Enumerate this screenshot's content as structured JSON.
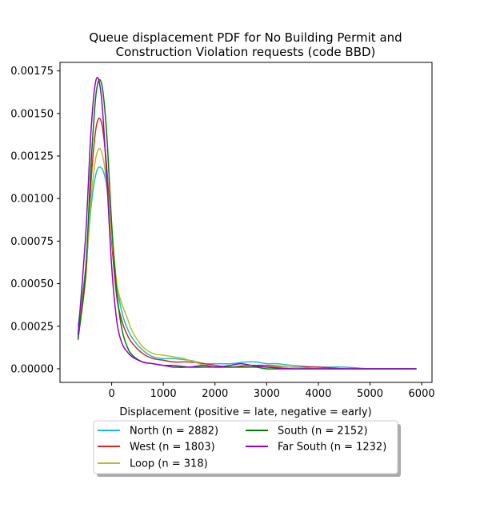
{
  "chart_data": {
    "type": "line",
    "title_line1": "Queue displacement PDF for No Building Permit and",
    "title_line2": "Construction Violation  requests (code BBD)",
    "xlabel": "Displacement (positive = late, negative = early)",
    "ylabel": "",
    "xlim": [
      -1000,
      6200
    ],
    "ylim": [
      -8e-05,
      0.0018
    ],
    "x_ticks": [
      0,
      1000,
      2000,
      3000,
      4000,
      5000,
      6000
    ],
    "y_ticks": [
      0.0,
      0.00025,
      0.0005,
      0.00075,
      0.001,
      0.00125,
      0.0015,
      0.00175
    ],
    "x_tick_labels": [
      "0",
      "1000",
      "2000",
      "3000",
      "4000",
      "5000",
      "6000"
    ],
    "y_tick_labels": [
      "0.00000",
      "0.00025",
      "0.00050",
      "0.00075",
      "0.00100",
      "0.00125",
      "0.00150",
      "0.00175"
    ],
    "grid": false,
    "legend_position": "below",
    "series": [
      {
        "name": "North (n = 2882)",
        "color": "#17becf",
        "x": [
          -650,
          -500,
          -400,
          -300,
          -200,
          -100,
          0,
          100,
          200,
          300,
          400,
          600,
          800,
          1000,
          1200,
          1500,
          1800,
          2000,
          2300,
          2600,
          2800,
          3000,
          3200,
          3500,
          4000,
          4500,
          5000,
          5500,
          5900
        ],
        "y": [
          0.00025,
          0.0006,
          0.00095,
          0.00115,
          0.00118,
          0.00108,
          0.0008,
          0.0005,
          0.00033,
          0.00024,
          0.00018,
          0.00011,
          7e-05,
          6e-05,
          6e-05,
          5e-05,
          3e-05,
          3e-05,
          3e-05,
          4e-05,
          4e-05,
          3e-05,
          3e-05,
          2e-05,
          1e-05,
          1e-05,
          0.0,
          0.0,
          0.0
        ]
      },
      {
        "name": "West (n = 1803)",
        "color": "#d62728",
        "x": [
          -650,
          -500,
          -400,
          -300,
          -200,
          -100,
          0,
          100,
          200,
          300,
          400,
          600,
          800,
          1000,
          1200,
          1500,
          1800,
          2000,
          2300,
          2600,
          2800,
          3000,
          3500,
          4000,
          4500,
          5000,
          5500,
          5900
        ],
        "y": [
          0.00018,
          0.00055,
          0.0011,
          0.00142,
          0.00145,
          0.0012,
          0.00075,
          0.00042,
          0.00028,
          0.0002,
          0.00015,
          9e-05,
          6e-05,
          5e-05,
          4e-05,
          4e-05,
          3e-05,
          2e-05,
          1e-05,
          2e-05,
          2e-05,
          2e-05,
          1e-05,
          1e-05,
          0.0,
          0.0,
          0.0,
          0.0
        ]
      },
      {
        "name": "Loop (n = 318)",
        "color": "#bcbd22",
        "x": [
          -650,
          -500,
          -400,
          -300,
          -200,
          -100,
          0,
          100,
          200,
          300,
          400,
          600,
          800,
          1000,
          1200,
          1400,
          1600,
          1800,
          2000,
          2300,
          2600,
          3000,
          3500,
          4000,
          5000,
          5900
        ],
        "y": [
          0.0002,
          0.0006,
          0.001,
          0.00125,
          0.00128,
          0.0011,
          0.00078,
          0.0005,
          0.00038,
          0.0003,
          0.00022,
          0.00013,
          9e-05,
          8e-05,
          7e-05,
          6e-05,
          4e-05,
          2e-05,
          1e-05,
          1e-05,
          1e-05,
          1e-05,
          1e-05,
          0.0,
          0.0,
          0.0
        ]
      },
      {
        "name": "South (n = 2152)",
        "color": "#008000",
        "x": [
          -650,
          -500,
          -400,
          -300,
          -200,
          -100,
          0,
          100,
          200,
          300,
          400,
          600,
          800,
          1000,
          1200,
          1500,
          1800,
          2000,
          2300,
          2600,
          2800,
          3000,
          3500,
          4000,
          5000,
          5900
        ],
        "y": [
          0.00017,
          0.0006,
          0.0012,
          0.00162,
          0.00168,
          0.0014,
          0.00085,
          0.00045,
          0.00023,
          0.00013,
          8e-05,
          4e-05,
          3e-05,
          2e-05,
          2e-05,
          1e-05,
          1e-05,
          1e-05,
          1e-05,
          1e-05,
          1e-05,
          0.0,
          0.0,
          0.0,
          0.0,
          0.0
        ]
      },
      {
        "name": "Far South (n = 1232)",
        "color": "#9400d3",
        "x": [
          -650,
          -500,
          -400,
          -300,
          -200,
          -100,
          0,
          100,
          200,
          300,
          400,
          600,
          800,
          1000,
          1200,
          1500,
          1800,
          2000,
          2300,
          2500,
          2700,
          3000,
          3500,
          4000,
          5000,
          5900
        ],
        "y": [
          0.0002,
          0.0008,
          0.0014,
          0.0017,
          0.0016,
          0.00115,
          0.0006,
          0.00028,
          0.00015,
          0.0001,
          7e-05,
          4e-05,
          3e-05,
          2e-05,
          1e-05,
          1e-05,
          2e-05,
          1e-05,
          2e-05,
          3e-05,
          2e-05,
          1e-05,
          0.0,
          0.0,
          0.0,
          0.0
        ]
      }
    ]
  }
}
